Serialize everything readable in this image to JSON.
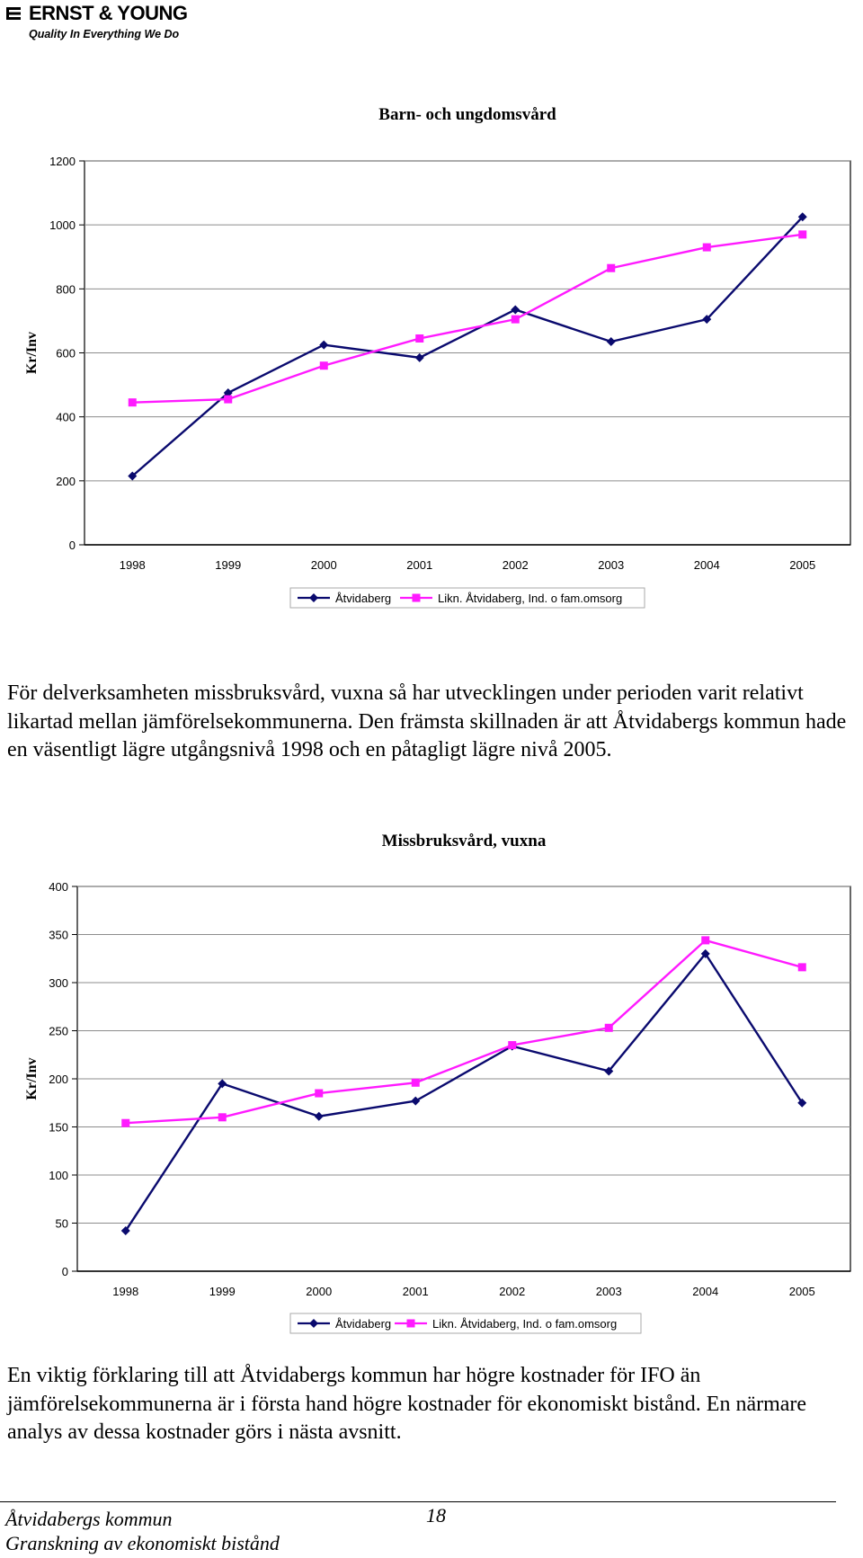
{
  "header": {
    "logo_name": "ERNST & YOUNG",
    "logo_tagline": "Quality In Everything We Do"
  },
  "charts": [
    {
      "title": "Barn- och ungdomsvård",
      "ylabel": "Kr/Inv",
      "legend": [
        "Åtvidaberg",
        "Likn. Åtvidaberg, Ind. o fam.omsorg"
      ]
    },
    {
      "title": "Missbruksvård, vuxna",
      "ylabel": "Kr/Inv",
      "legend": [
        "Åtvidaberg",
        "Likn. Åtvidaberg, Ind. o fam.omsorg"
      ]
    }
  ],
  "chart_data": [
    {
      "type": "line",
      "title": "Barn- och ungdomsvård",
      "xlabel": "",
      "ylabel": "Kr/Inv",
      "categories": [
        "1998",
        "1999",
        "2000",
        "2001",
        "2002",
        "2003",
        "2004",
        "2005"
      ],
      "ylim": [
        0,
        1200
      ],
      "yticks": [
        0,
        200,
        400,
        600,
        800,
        1000,
        1200
      ],
      "grid": true,
      "legend_position": "bottom",
      "series": [
        {
          "name": "Åtvidaberg",
          "color": "#0a0a6e",
          "marker": "diamond",
          "values": [
            215,
            475,
            625,
            585,
            735,
            635,
            705,
            1025
          ]
        },
        {
          "name": "Likn. Åtvidaberg, Ind. o fam.omsorg",
          "color": "#ff1aff",
          "marker": "square",
          "values": [
            445,
            455,
            560,
            645,
            705,
            865,
            930,
            970
          ]
        }
      ]
    },
    {
      "type": "line",
      "title": "Missbruksvård, vuxna",
      "xlabel": "",
      "ylabel": "Kr/Inv",
      "categories": [
        "1998",
        "1999",
        "2000",
        "2001",
        "2002",
        "2003",
        "2004",
        "2005"
      ],
      "ylim": [
        0,
        400
      ],
      "yticks": [
        0,
        50,
        100,
        150,
        200,
        250,
        300,
        350,
        400
      ],
      "grid": true,
      "legend_position": "bottom",
      "series": [
        {
          "name": "Åtvidaberg",
          "color": "#0a0a6e",
          "marker": "diamond",
          "values": [
            42,
            195,
            161,
            177,
            234,
            208,
            330,
            175
          ]
        },
        {
          "name": "Likn. Åtvidaberg, Ind. o fam.omsorg",
          "color": "#ff1aff",
          "marker": "square",
          "values": [
            154,
            160,
            185,
            196,
            235,
            253,
            344,
            316
          ]
        }
      ]
    }
  ],
  "body": {
    "paragraph_1": "För delverksamheten missbruksvård, vuxna så har utvecklingen under perioden varit relativt likartad mellan jämförelsekommunerna. Den främsta skillnaden är att Åtvidabergs kommun hade en väsentligt lägre utgångsnivå 1998 och en påtagligt lägre nivå 2005.",
    "paragraph_2": "En viktig förklaring till att Åtvidabergs kommun har högre kostnader för IFO än jämförelsekommunerna är i första hand högre kostnader för ekonomiskt bistånd. En närmare analys av dessa kostnader görs i nästa avsnitt."
  },
  "footer": {
    "line_1": "Åtvidabergs kommun",
    "line_2": "Granskning av ekonomiskt bistånd",
    "page_number": "18"
  }
}
